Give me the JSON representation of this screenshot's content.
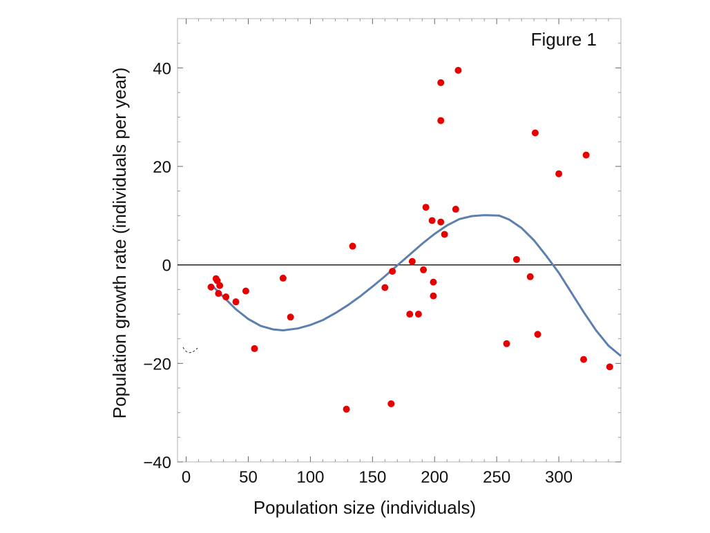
{
  "chart_data": {
    "type": "scatter",
    "annotation": "Figure 1",
    "xlabel": "Population size (individuals)",
    "ylabel": "Population growth rate (individuals per year)",
    "xlim": [
      -7,
      350
    ],
    "ylim": [
      -40,
      50
    ],
    "x_ticks": [
      0,
      50,
      100,
      150,
      200,
      250,
      300
    ],
    "x_tick_labels": [
      "0",
      "50",
      "100",
      "150",
      "200",
      "250",
      "300"
    ],
    "y_ticks": [
      -40,
      -20,
      0,
      20,
      40
    ],
    "y_tick_labels": [
      "−40",
      "−20",
      "0",
      "20",
      "40"
    ],
    "grid": false,
    "reference_line_y": 0,
    "colors": {
      "points": "#e60000",
      "curve": "#5b7fb0",
      "frame": "#b0b0b0",
      "zero_line": "#111111"
    },
    "series": [
      {
        "type": "scatter",
        "points": [
          [
            20,
            -4.5
          ],
          [
            24,
            -2.8
          ],
          [
            25,
            -3.2
          ],
          [
            26,
            -5.8
          ],
          [
            27,
            -4.2
          ],
          [
            32,
            -6.5
          ],
          [
            40,
            -7.5
          ],
          [
            48,
            -5.3
          ],
          [
            55,
            -17
          ],
          [
            78,
            -2.7
          ],
          [
            84,
            -10.6
          ],
          [
            129,
            -29.3
          ],
          [
            134,
            3.8
          ],
          [
            160,
            -4.6
          ],
          [
            165,
            -28.2
          ],
          [
            166,
            -1.3
          ],
          [
            180,
            -10
          ],
          [
            182,
            0.7
          ],
          [
            187,
            -10
          ],
          [
            191,
            -1
          ],
          [
            193,
            11.7
          ],
          [
            198,
            9
          ],
          [
            199,
            -3.5
          ],
          [
            199,
            -6.3
          ],
          [
            205,
            29.3
          ],
          [
            205,
            37
          ],
          [
            205,
            8.7
          ],
          [
            208,
            6.2
          ],
          [
            217,
            11.3
          ],
          [
            219,
            39.5
          ],
          [
            258,
            -16
          ],
          [
            266,
            1.1
          ],
          [
            277,
            -2.4
          ],
          [
            281,
            26.8
          ],
          [
            283,
            -14.1
          ],
          [
            300,
            18.5
          ],
          [
            320,
            -19.2
          ],
          [
            322,
            22.3
          ],
          [
            341,
            -20.7
          ]
        ]
      },
      {
        "type": "line",
        "description_points_x": [
          20,
          30,
          40,
          50,
          60,
          70,
          78,
          90,
          100,
          110,
          120,
          130,
          140,
          150,
          160,
          170,
          180,
          190,
          200,
          210,
          220,
          230,
          240,
          252,
          260,
          270,
          280,
          290,
          300,
          310,
          320,
          330,
          340,
          350
        ],
        "description_points_y": [
          -4,
          -6.5,
          -9,
          -11,
          -12.4,
          -13.1,
          -13.3,
          -12.9,
          -12.2,
          -11.2,
          -9.8,
          -8.2,
          -6.4,
          -4.4,
          -2.3,
          -0.1,
          2.1,
          4.3,
          6.3,
          8,
          9.3,
          9.9,
          10.1,
          10,
          9.2,
          7.5,
          5,
          1.8,
          -1.6,
          -5.6,
          -9.6,
          -13.3,
          -16.4,
          -18.5
        ]
      }
    ]
  }
}
